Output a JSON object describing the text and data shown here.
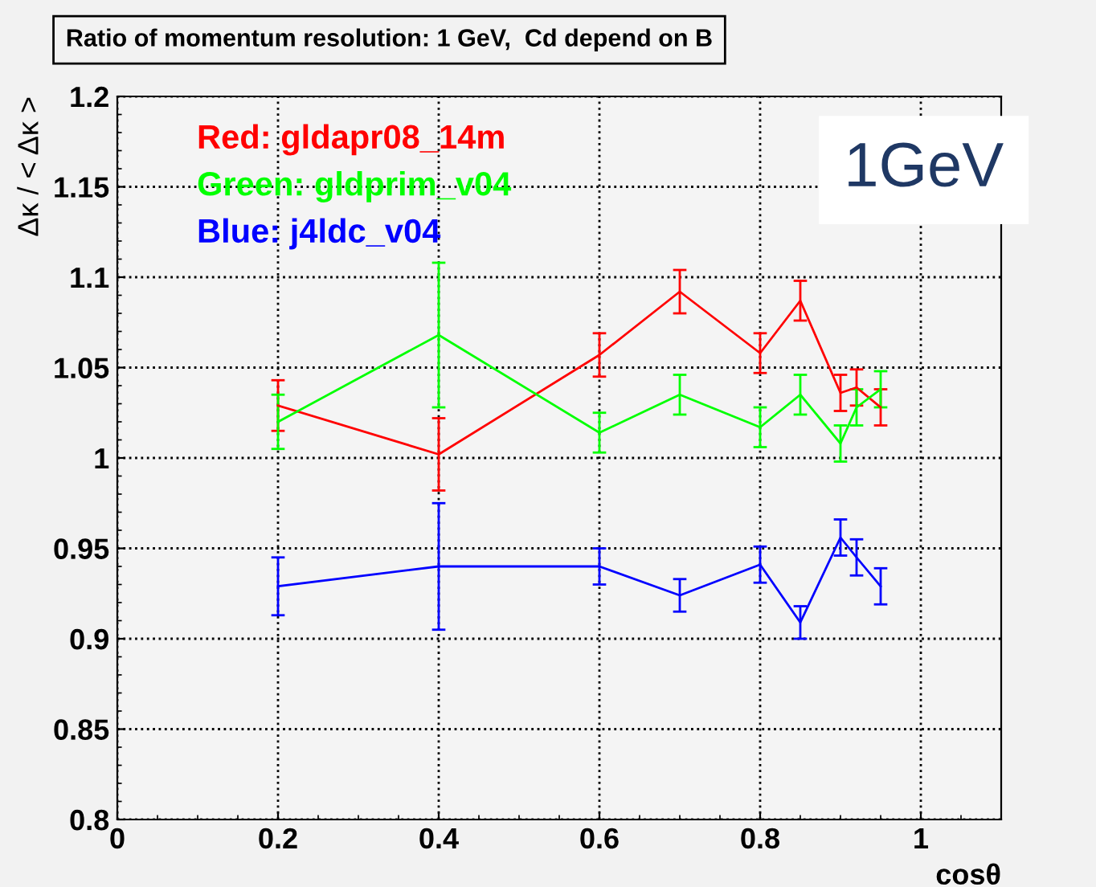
{
  "chart_data": {
    "type": "line",
    "title": "Ratio of momentum resolution: 1 GeV,  Cd depend on B",
    "xlabel": "cosθ",
    "ylabel": "Δκ / < Δκ >",
    "x": [
      0.2,
      0.4,
      0.6,
      0.7,
      0.8,
      0.85,
      0.9,
      0.92,
      0.95
    ],
    "series": [
      {
        "name": "Red: gldapr08_14m",
        "color": "#ff0000",
        "values": [
          1.029,
          1.002,
          1.057,
          1.092,
          1.058,
          1.087,
          1.036,
          1.039,
          1.028
        ],
        "errors": [
          0.014,
          0.02,
          0.012,
          0.012,
          0.011,
          0.011,
          0.01,
          0.01,
          0.01
        ]
      },
      {
        "name": "Green: gldprim_v04",
        "color": "#00ff00",
        "values": [
          1.02,
          1.068,
          1.014,
          1.035,
          1.017,
          1.035,
          1.008,
          1.028,
          1.038
        ],
        "errors": [
          0.015,
          0.04,
          0.011,
          0.011,
          0.011,
          0.011,
          0.01,
          0.01,
          0.01
        ]
      },
      {
        "name": "Blue: j4ldc_v04",
        "color": "#0000ff",
        "values": [
          0.929,
          0.94,
          0.94,
          0.924,
          0.941,
          0.909,
          0.956,
          0.945,
          0.929
        ],
        "errors": [
          0.016,
          0.035,
          0.01,
          0.009,
          0.01,
          0.009,
          0.01,
          0.01,
          0.01
        ]
      }
    ],
    "annotations": [
      "1GeV"
    ],
    "xlim": [
      0,
      1.1
    ],
    "xticks": [
      0,
      0.2,
      0.4,
      0.6,
      0.8,
      1
    ],
    "ylim": [
      0.8,
      1.2
    ],
    "yticks": [
      0.8,
      0.85,
      0.9,
      0.95,
      1,
      1.05,
      1.1,
      1.15,
      1.2
    ],
    "grid": true,
    "legend": "top left",
    "marker": "none",
    "line_style": "solid"
  }
}
